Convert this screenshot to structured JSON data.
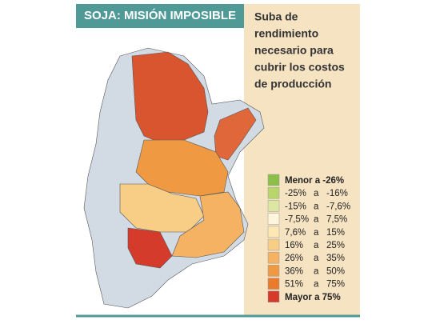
{
  "header": {
    "title": "SOJA: MISIÓN IMPOSIBLE"
  },
  "subtitle": [
    "Suba de",
    "rendimiento",
    "necesario para",
    "cubrir los costos",
    "de producción"
  ],
  "legend": [
    {
      "text": [
        "Menor a -26%"
      ],
      "color": "#8cbf4a",
      "bold": true
    },
    {
      "text": [
        "-25%",
        "a",
        "-16%"
      ],
      "color": "#b9d66c",
      "bold": false
    },
    {
      "text": [
        "-15%",
        "a",
        "-7,6%"
      ],
      "color": "#dde7a3",
      "bold": false
    },
    {
      "text": [
        "-7,5%",
        "a",
        "7,5%"
      ],
      "color": "#fdf6dc",
      "bold": false
    },
    {
      "text": [
        "7,6%",
        "a",
        "15%"
      ],
      "color": "#fde7b2",
      "bold": false
    },
    {
      "text": [
        "16%",
        "a",
        "25%"
      ],
      "color": "#f8cd86",
      "bold": false
    },
    {
      "text": [
        "26%",
        "a",
        "35%"
      ],
      "color": "#f4b262",
      "bold": false
    },
    {
      "text": [
        "36%",
        "a",
        "50%"
      ],
      "color": "#ef9a42",
      "bold": false
    },
    {
      "text": [
        "51%",
        "a",
        "75%"
      ],
      "color": "#e97b2c",
      "bold": false
    },
    {
      "text": [
        "Mayor a 75%"
      ],
      "color": "#d43b2b",
      "bold": true
    }
  ]
}
